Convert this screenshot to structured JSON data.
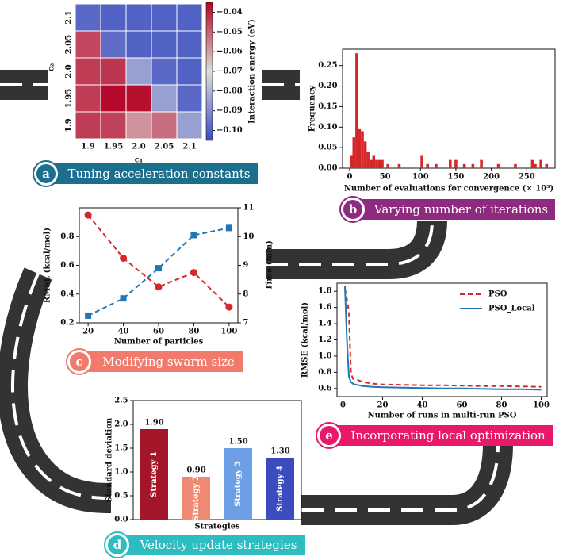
{
  "chart_data": [
    {
      "type": "heatmap",
      "label": "a",
      "caption": "Tuning acceleration constants",
      "xlabel": "c₁",
      "ylabel": "c₂",
      "colorbar_label": "Interaction energy (eV)",
      "x_categories": [
        "1.9",
        "1.95",
        "2.0",
        "2.05",
        "2.1"
      ],
      "y_categories": [
        "1.9",
        "1.95",
        "2.0",
        "2.05",
        "2.1"
      ],
      "z": [
        [
          -0.044,
          -0.045,
          -0.058,
          -0.052,
          -0.085
        ],
        [
          -0.044,
          -0.036,
          -0.037,
          -0.085,
          -0.098
        ],
        [
          -0.044,
          -0.043,
          -0.085,
          -0.098,
          -0.1
        ],
        [
          -0.046,
          -0.097,
          -0.1,
          -0.1,
          -0.1
        ],
        [
          -0.098,
          -0.1,
          -0.1,
          -0.1,
          -0.1
        ]
      ],
      "clim": [
        -0.105,
        -0.035
      ],
      "colormap": "coolwarm",
      "cticks": [
        {
          "value": -0.04,
          "label": "−0.04"
        },
        {
          "value": -0.05,
          "label": "−0.05"
        },
        {
          "value": -0.06,
          "label": "−0.06"
        },
        {
          "value": -0.07,
          "label": "−0.07"
        },
        {
          "value": -0.08,
          "label": "−0.08"
        },
        {
          "value": -0.09,
          "label": "−0.09"
        },
        {
          "value": -0.1,
          "label": "−0.10"
        }
      ]
    },
    {
      "type": "histogram",
      "label": "b",
      "caption": "Varying number of iterations",
      "xlabel": "Number of evaluations for convergence (× 10³)",
      "ylabel": "Frequency",
      "color": "#d62728",
      "bins": [
        0,
        4,
        8,
        12,
        16,
        20,
        24,
        28,
        32,
        36,
        40,
        44,
        48,
        52,
        56,
        60,
        64,
        68,
        72,
        76,
        80,
        84,
        88,
        92,
        96,
        100,
        104,
        108,
        112,
        116,
        120,
        124,
        128,
        132,
        136,
        140,
        144,
        148,
        152,
        156,
        160,
        164,
        168,
        172,
        176,
        180,
        184,
        188,
        192,
        196,
        200,
        204,
        208,
        212,
        216,
        220,
        224,
        228,
        232,
        236,
        240,
        244,
        248,
        252,
        256,
        260,
        264,
        268,
        272,
        276,
        280,
        284
      ],
      "counts": [
        0.03,
        0.075,
        0.28,
        0.095,
        0.09,
        0.065,
        0.04,
        0.02,
        0.03,
        0.02,
        0.02,
        0.02,
        0,
        0.01,
        0,
        0,
        0,
        0.01,
        0,
        0,
        0,
        0,
        0,
        0,
        0,
        0.03,
        0,
        0.01,
        0,
        0,
        0.01,
        0,
        0,
        0,
        0,
        0.02,
        0,
        0.02,
        0,
        0,
        0.01,
        0,
        0,
        0.01,
        0,
        0,
        0.02,
        0,
        0,
        0,
        0,
        0,
        0.01,
        0,
        0,
        0,
        0,
        0,
        0.01,
        0,
        0,
        0,
        0,
        0,
        0.02,
        0.01,
        0,
        0.02,
        0,
        0.01,
        0
      ],
      "xlim": [
        -10,
        290
      ],
      "xticks": [
        0,
        50,
        100,
        150,
        200,
        250
      ],
      "ylim": [
        0,
        0.29
      ],
      "yticks": [
        {
          "value": 0,
          "label": "0.00"
        },
        {
          "value": 0.05,
          "label": "0.05"
        },
        {
          "value": 0.1,
          "label": "0.10"
        },
        {
          "value": 0.15,
          "label": "0.15"
        },
        {
          "value": 0.2,
          "label": "0.20"
        },
        {
          "value": 0.25,
          "label": "0.25"
        }
      ]
    },
    {
      "type": "line",
      "label": "c",
      "caption": "Modifying swarm size",
      "xlabel": "Number of particles",
      "ylabel": "RMSE (kcal/mol)",
      "y2label": "Time (min)",
      "x": [
        20,
        40,
        60,
        80,
        100
      ],
      "series": [
        {
          "name": "RMSE",
          "color": "#d62728",
          "marker": "circle",
          "linestyle": "dashed",
          "values": [
            0.95,
            0.65,
            0.45,
            0.55,
            0.31
          ]
        },
        {
          "name": "Time",
          "color": "#1f77b4",
          "marker": "square",
          "linestyle": "dashed",
          "axis": "y2",
          "values": [
            7.25,
            7.85,
            8.9,
            10.05,
            10.3
          ]
        }
      ],
      "xlim": [
        15,
        105
      ],
      "xticks": [
        20,
        40,
        60,
        80,
        100
      ],
      "ylim": [
        0.2,
        1.0
      ],
      "yticks": [
        0.2,
        0.4,
        0.6,
        0.8
      ],
      "y2lim": [
        7,
        11
      ],
      "y2ticks": [
        7,
        8,
        9,
        10,
        11
      ]
    },
    {
      "type": "bar",
      "label": "d",
      "caption": "Velocity update strategies",
      "xlabel": "Strategies",
      "ylabel": "Standard deviation",
      "categories": [
        "Strategy 1",
        "Strategy 2",
        "Strategy 3",
        "Strategy 4"
      ],
      "values": [
        1.9,
        0.9,
        1.5,
        1.3
      ],
      "value_labels": [
        "1.90",
        "0.90",
        "1.50",
        "1.30"
      ],
      "colors": [
        "#a5152a",
        "#ee8a73",
        "#6d9fe6",
        "#3b4cc0"
      ],
      "ylim": [
        0,
        2.5
      ],
      "yticks": [
        {
          "value": 0,
          "label": "0.0"
        },
        0.5,
        {
          "value": 1,
          "label": "1.0"
        },
        1.5,
        {
          "value": 2,
          "label": "2.0"
        },
        2.5
      ]
    },
    {
      "type": "line",
      "label": "e",
      "caption": "Incorporating local optimization",
      "xlabel": "Number of runs in multi-run PSO",
      "ylabel": "RMSE (kcal/mol)",
      "legend": "upper right",
      "x": [
        1,
        2,
        3,
        4,
        5,
        6,
        8,
        10,
        15,
        20,
        30,
        40,
        50,
        60,
        70,
        80,
        90,
        100
      ],
      "series": [
        {
          "name": "PSO",
          "color": "#d62728",
          "linestyle": "dashed",
          "values": [
            1.83,
            1.7,
            1.55,
            0.8,
            0.72,
            0.72,
            0.7,
            0.68,
            0.66,
            0.65,
            0.645,
            0.64,
            0.64,
            0.635,
            0.63,
            0.63,
            0.625,
            0.62
          ]
        },
        {
          "name": "PSO_Local",
          "color": "#1f77b4",
          "linestyle": "solid",
          "values": [
            1.86,
            1.2,
            0.75,
            0.68,
            0.66,
            0.65,
            0.64,
            0.63,
            0.62,
            0.615,
            0.61,
            0.605,
            0.6,
            0.6,
            0.595,
            0.59,
            0.59,
            0.585
          ]
        }
      ],
      "xlim": [
        -3,
        103
      ],
      "xticks": [
        0,
        20,
        40,
        60,
        80,
        100
      ],
      "ylim": [
        0.5,
        1.9
      ],
      "yticks": [
        0.6,
        0.8,
        {
          "value": 1,
          "label": "1.0"
        },
        1.2,
        1.4,
        1.6,
        1.8
      ]
    }
  ]
}
